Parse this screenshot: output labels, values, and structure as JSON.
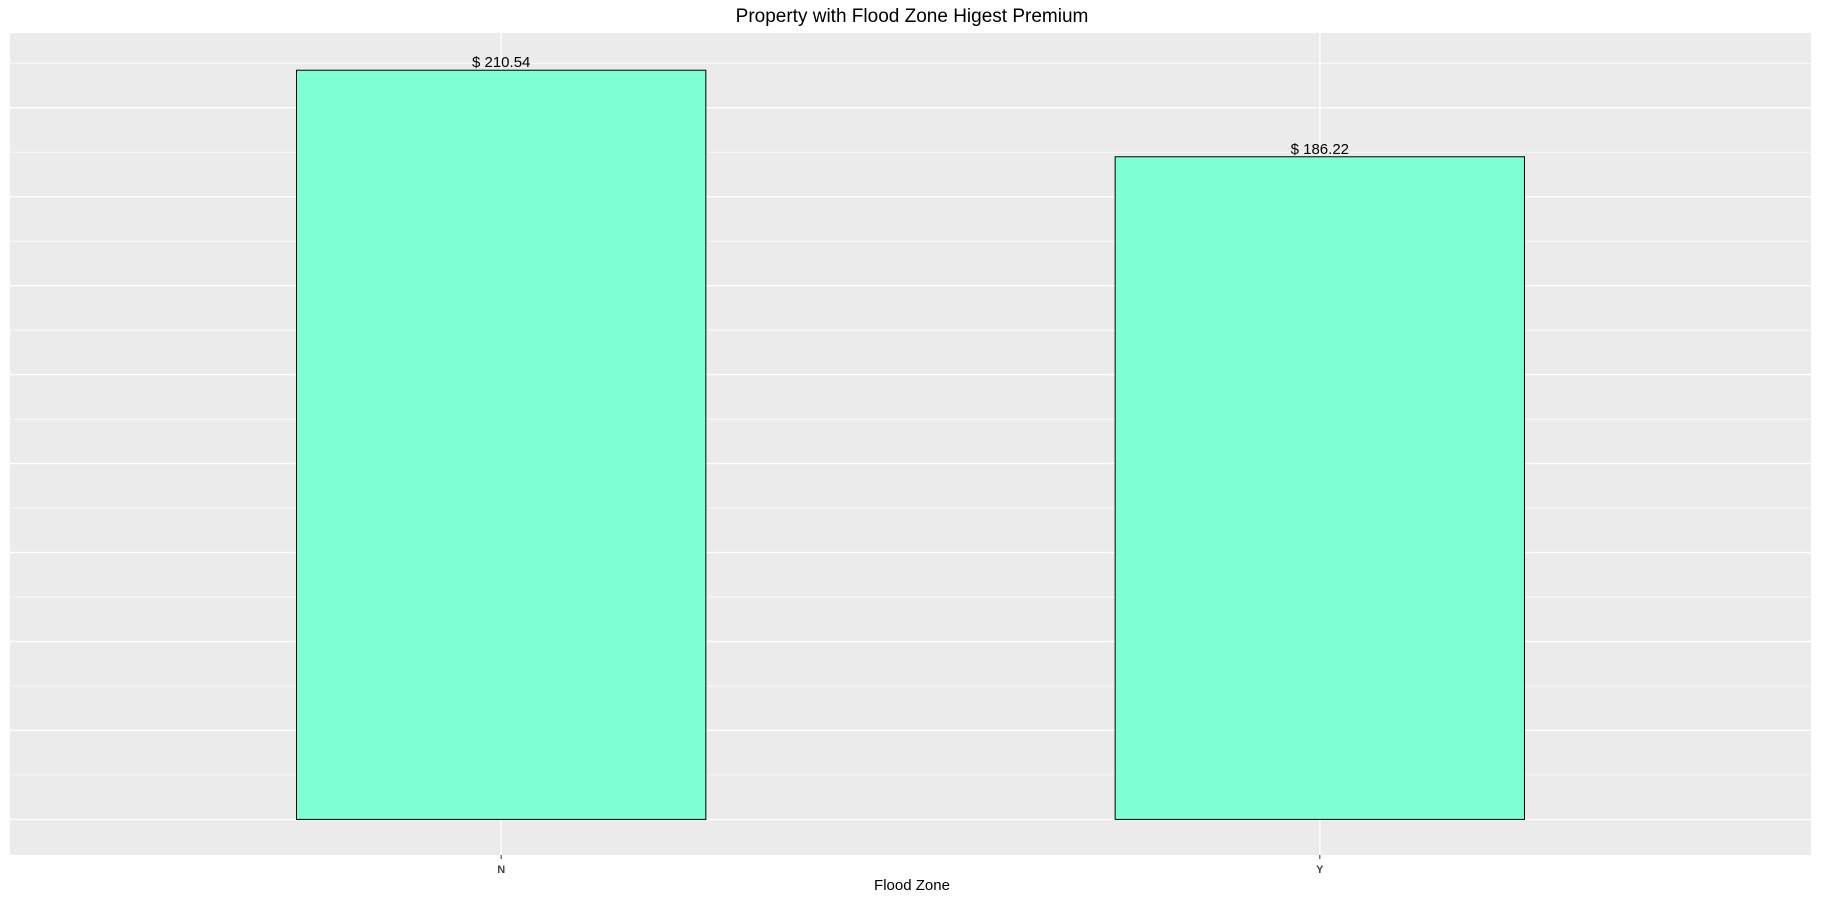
{
  "chart_data": {
    "type": "bar",
    "title": "Property with Flood Zone Higest Premium",
    "xlabel": "Flood Zone",
    "ylabel": "",
    "categories": [
      "N",
      "Y"
    ],
    "values": [
      210.54,
      186.22
    ],
    "data_labels": [
      "$ 210.54",
      "$ 186.22"
    ],
    "ylim": [
      -10,
      221
    ],
    "grid": true,
    "legend": "none",
    "colors": {
      "bar_fill": "#7FFFD4",
      "bar_stroke": "#000000",
      "panel_background": "#EBEBEB",
      "grid_line": "#FFFFFF"
    }
  }
}
